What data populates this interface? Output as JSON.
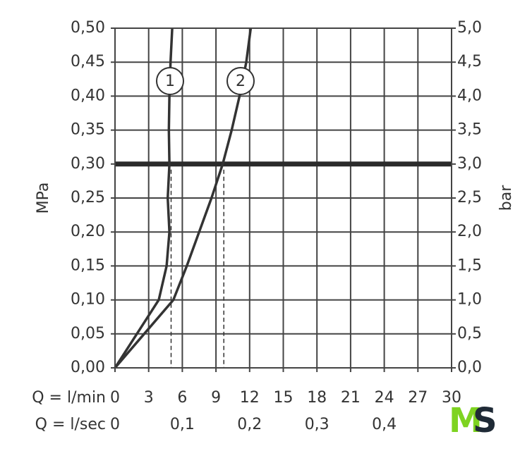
{
  "chart_data": {
    "type": "line",
    "x_label": "Q = l/min",
    "x2_label": "Q = l/sec",
    "y_label": "MPa",
    "y2_label": "bar",
    "xlim": [
      0,
      30
    ],
    "xticks": [
      0,
      3,
      6,
      9,
      12,
      15,
      18,
      21,
      24,
      27,
      30
    ],
    "x2lim": [
      0,
      0.5
    ],
    "x2ticks": [
      0,
      {
        "value": 0.1,
        "label": "0,1"
      },
      {
        "value": 0.2,
        "label": "0,2"
      },
      {
        "value": 0.3,
        "label": "0,3"
      },
      {
        "value": 0.4,
        "label": "0,4"
      }
    ],
    "ylim": [
      0,
      0.5
    ],
    "yticks": [
      {
        "value": 0,
        "label": "0,00"
      },
      {
        "value": 0.05,
        "label": "0,05"
      },
      {
        "value": 0.1,
        "label": "0,10"
      },
      {
        "value": 0.15,
        "label": "0,15"
      },
      {
        "value": 0.2,
        "label": "0,20"
      },
      {
        "value": 0.25,
        "label": "0,25"
      },
      {
        "value": 0.3,
        "label": "0,30"
      },
      {
        "value": 0.35,
        "label": "0,35"
      },
      {
        "value": 0.4,
        "label": "0,40"
      },
      {
        "value": 0.45,
        "label": "0,45"
      },
      {
        "value": 0.5,
        "label": "0,50"
      }
    ],
    "y2lim": [
      0,
      5
    ],
    "y2ticks": [
      {
        "value": 0,
        "label": "0,0"
      },
      {
        "value": 0.5,
        "label": "0,5"
      },
      {
        "value": 1,
        "label": "1,0"
      },
      {
        "value": 1.5,
        "label": "1,5"
      },
      {
        "value": 2,
        "label": "2,0"
      },
      {
        "value": 2.5,
        "label": "2,5"
      },
      {
        "value": 3,
        "label": "3,0"
      },
      {
        "value": 3.5,
        "label": "3,5"
      },
      {
        "value": 4,
        "label": "4,0"
      },
      {
        "value": 4.5,
        "label": "4,5"
      },
      {
        "value": 5,
        "label": "5,0"
      }
    ],
    "grid": true,
    "color": "#333333",
    "series": [
      {
        "name": "1",
        "x": [
          0,
          3.9,
          4.6,
          4.85,
          4.7,
          4.85,
          4.8,
          4.85,
          4.95,
          5.1
        ],
        "values": [
          0,
          0.1,
          0.15,
          0.2,
          0.25,
          0.3,
          0.35,
          0.4,
          0.45,
          0.5
        ]
      },
      {
        "name": "2",
        "x": [
          0,
          2.6,
          5.2,
          6.4,
          7.5,
          8.6,
          9.6,
          10.4,
          11.1,
          11.7,
          12.1
        ],
        "values": [
          0,
          0.05,
          0.1,
          0.15,
          0.2,
          0.25,
          0.3,
          0.35,
          0.4,
          0.45,
          0.5
        ]
      }
    ],
    "reference_y": 0.3,
    "reference_x": [
      5,
      9.7
    ]
  },
  "logo": [
    "M",
    "S"
  ]
}
